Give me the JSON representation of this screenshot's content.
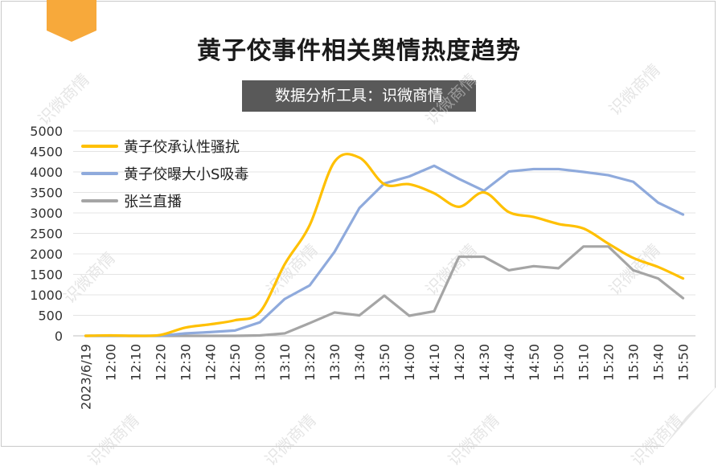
{
  "title": "黄子佼事件相关舆情热度趋势",
  "subtitle": "数据分析工具：识微商情",
  "watermark": "识微商情",
  "colors": {
    "tag": "#f7a93b",
    "subtitle_bg": "#595959",
    "grid": "#e4e4e4",
    "axis": "#bfbfbf"
  },
  "chart_data": {
    "type": "line",
    "categories": [
      "2023/6/19",
      "12:00",
      "12:10",
      "12:20",
      "12:30",
      "12:40",
      "12:50",
      "13:00",
      "13:10",
      "13:20",
      "13:30",
      "13:40",
      "13:50",
      "14:00",
      "14:10",
      "14:20",
      "14:30",
      "14:40",
      "14:50",
      "15:00",
      "15:10",
      "15:20",
      "15:30",
      "15:40",
      "15:50"
    ],
    "ylim": [
      0,
      5000
    ],
    "yticks": [
      0,
      500,
      1000,
      1500,
      2000,
      2500,
      3000,
      3500,
      4000,
      4500,
      5000
    ],
    "grid": true,
    "legend_position": "top-left",
    "series": [
      {
        "name": "黄子佼承认性骚扰",
        "color": "#ffc000",
        "smooth": true,
        "values": [
          0,
          10,
          0,
          20,
          200,
          280,
          380,
          580,
          1750,
          2700,
          4250,
          4350,
          3700,
          3700,
          3480,
          3150,
          3500,
          3020,
          2900,
          2730,
          2620,
          2250,
          1900,
          1680,
          1400
        ]
      },
      {
        "name": "黄子佼曝大小S吸毒",
        "color": "#8faadc",
        "smooth": false,
        "values": [
          0,
          0,
          0,
          0,
          60,
          90,
          130,
          330,
          900,
          1230,
          2050,
          3120,
          3720,
          3890,
          4150,
          3830,
          3540,
          4010,
          4070,
          4070,
          4000,
          3920,
          3760,
          3250,
          2960
        ]
      },
      {
        "name": "张兰直播",
        "color": "#a5a5a5",
        "smooth": false,
        "values": [
          0,
          0,
          0,
          0,
          0,
          0,
          0,
          10,
          60,
          310,
          570,
          500,
          980,
          490,
          600,
          1930,
          1930,
          1600,
          1700,
          1650,
          2180,
          2180,
          1600,
          1400,
          920
        ]
      }
    ]
  }
}
